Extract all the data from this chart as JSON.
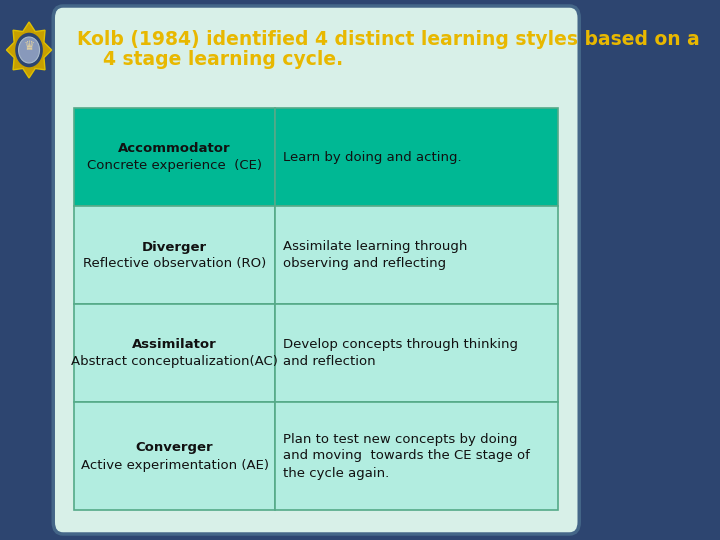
{
  "background_color": "#2d4570",
  "card_bg": "#d8f0e8",
  "title_line1": "Kolb (1984) identified 4 distinct learning styles based on a",
  "title_line2": "    4 stage learning cycle.",
  "title_color": "#e8b800",
  "title_fontsize": 13.5,
  "row1_bg": "#00b894",
  "row2_bg": "#b2ede0",
  "row3_bg": "#b2ede0",
  "row4_bg": "#b2ede0",
  "rows": [
    {
      "left_bold": "Accommodator",
      "left_normal": "Concrete experience  (CE)",
      "right": "Learn by doing and acting."
    },
    {
      "left_bold": "Diverger",
      "left_normal": "Reflective observation (RO)",
      "right": "Assimilate learning through\nobserving and reflecting"
    },
    {
      "left_bold": "Assimilator",
      "left_normal": "Abstract conceptualization(AC)",
      "right": "Develop concepts through thinking\nand reflection"
    },
    {
      "left_bold": "Converger",
      "left_normal": "Active experimentation (AE)",
      "right": "Plan to test new concepts by doing\nand moving  towards the CE stage of\nthe cycle again."
    }
  ],
  "cell_border_color": "#55aa88",
  "text_color": "#111111",
  "cell_fontsize": 9.5,
  "bold_fontsize": 9.5
}
